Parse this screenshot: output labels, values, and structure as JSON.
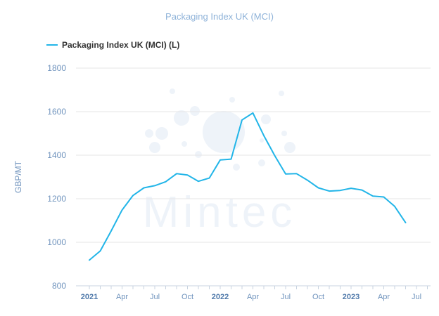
{
  "chart_data": {
    "type": "line",
    "title": "Packaging Index UK (MCI)",
    "ylabel": "GBP/MT",
    "ylim": [
      800,
      1800
    ],
    "yticks": [
      "800",
      "1000",
      "1200",
      "1400",
      "1600",
      "1800"
    ],
    "xticks": [
      "2021",
      "Apr",
      "Jul",
      "Oct",
      "2022",
      "Apr",
      "Jul",
      "Oct",
      "2023",
      "Apr",
      "Jul"
    ],
    "legend_position": "top-left",
    "grid": "horizontal",
    "watermark": "Mintec",
    "series": [
      {
        "name": "Packaging Index UK (MCI) (L)",
        "color": "#22b5e8",
        "x": [
          "2021-01",
          "2021-02",
          "2021-03",
          "2021-04",
          "2021-05",
          "2021-06",
          "2021-07",
          "2021-08",
          "2021-09",
          "2021-10",
          "2021-11",
          "2021-12",
          "2022-01",
          "2022-02",
          "2022-03",
          "2022-04",
          "2022-05",
          "2022-06",
          "2022-07",
          "2022-08",
          "2022-09",
          "2022-10",
          "2022-11",
          "2022-12",
          "2023-01",
          "2023-02",
          "2023-03",
          "2023-04",
          "2023-05",
          "2023-06"
        ],
        "values": [
          918,
          960,
          1052,
          1148,
          1215,
          1250,
          1260,
          1278,
          1315,
          1309,
          1280,
          1295,
          1378,
          1382,
          1562,
          1594,
          1490,
          1398,
          1314,
          1315,
          1285,
          1250,
          1235,
          1238,
          1248,
          1240,
          1212,
          1208,
          1165,
          1090
        ]
      }
    ]
  }
}
